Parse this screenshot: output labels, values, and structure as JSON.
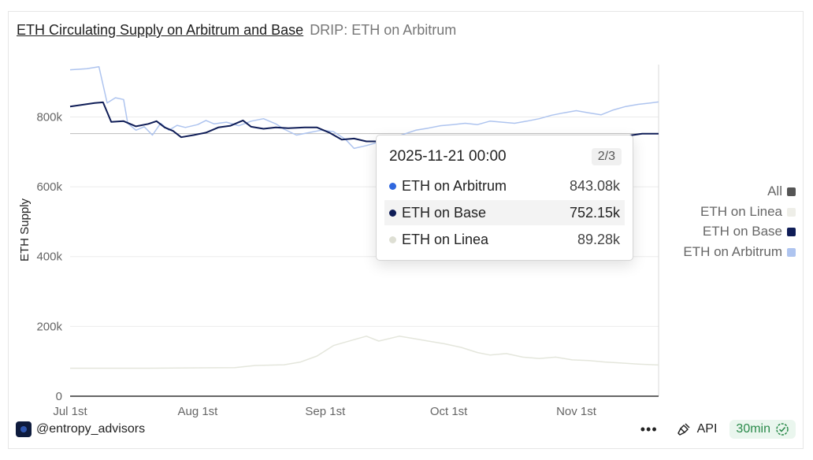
{
  "header": {
    "title": "ETH Circulating Supply on Arbitrum and Base",
    "subtitle": "DRIP: ETH on Arbitrum"
  },
  "chart_data": {
    "type": "line",
    "ylabel": "ETH Supply",
    "xlabel": "",
    "ylim": [
      0,
      950000
    ],
    "y_ticks": [
      0,
      200000,
      400000,
      600000,
      800000
    ],
    "y_tick_labels": [
      "0",
      "200k",
      "400k",
      "600k",
      "800k"
    ],
    "x_ticks": [
      "2025-07-01",
      "2025-08-01",
      "2025-09-01",
      "2025-10-01",
      "2025-11-01"
    ],
    "x_tick_labels": [
      "Jul 1st",
      "Aug 1st",
      "Sep 1st",
      "Oct 1st",
      "Nov 1st"
    ],
    "x_range": [
      "2025-07-01",
      "2025-11-21"
    ],
    "grid": true,
    "legend_position": "right",
    "series": [
      {
        "name": "ETH on Arbitrum",
        "color": "#aec4ef",
        "points": [
          [
            "2025-07-01",
            935000
          ],
          [
            "2025-07-05",
            938000
          ],
          [
            "2025-07-08",
            944000
          ],
          [
            "2025-07-10",
            840000
          ],
          [
            "2025-07-12",
            855000
          ],
          [
            "2025-07-14",
            850000
          ],
          [
            "2025-07-15",
            782000
          ],
          [
            "2025-07-17",
            762000
          ],
          [
            "2025-07-19",
            772000
          ],
          [
            "2025-07-21",
            748000
          ],
          [
            "2025-07-23",
            782000
          ],
          [
            "2025-07-25",
            762000
          ],
          [
            "2025-07-27",
            776000
          ],
          [
            "2025-07-29",
            770000
          ],
          [
            "2025-08-01",
            778000
          ],
          [
            "2025-08-03",
            790000
          ],
          [
            "2025-08-05",
            780000
          ],
          [
            "2025-08-08",
            785000
          ],
          [
            "2025-08-11",
            775000
          ],
          [
            "2025-08-14",
            788000
          ],
          [
            "2025-08-17",
            795000
          ],
          [
            "2025-08-20",
            780000
          ],
          [
            "2025-08-22",
            765000
          ],
          [
            "2025-08-25",
            748000
          ],
          [
            "2025-08-28",
            755000
          ],
          [
            "2025-08-31",
            762000
          ],
          [
            "2025-09-03",
            758000
          ],
          [
            "2025-09-06",
            735000
          ],
          [
            "2025-09-08",
            710000
          ],
          [
            "2025-09-11",
            718000
          ],
          [
            "2025-09-14",
            728000
          ],
          [
            "2025-09-17",
            738000
          ],
          [
            "2025-09-20",
            750000
          ],
          [
            "2025-09-23",
            762000
          ],
          [
            "2025-09-26",
            768000
          ],
          [
            "2025-09-29",
            775000
          ],
          [
            "2025-10-02",
            778000
          ],
          [
            "2025-10-05",
            782000
          ],
          [
            "2025-10-08",
            778000
          ],
          [
            "2025-10-11",
            788000
          ],
          [
            "2025-10-14",
            785000
          ],
          [
            "2025-10-17",
            782000
          ],
          [
            "2025-10-20",
            788000
          ],
          [
            "2025-10-23",
            795000
          ],
          [
            "2025-10-26",
            805000
          ],
          [
            "2025-10-29",
            812000
          ],
          [
            "2025-11-01",
            818000
          ],
          [
            "2025-11-04",
            812000
          ],
          [
            "2025-11-07",
            806000
          ],
          [
            "2025-11-10",
            820000
          ],
          [
            "2025-11-13",
            830000
          ],
          [
            "2025-11-16",
            836000
          ],
          [
            "2025-11-19",
            840000
          ],
          [
            "2025-11-21",
            843080
          ]
        ]
      },
      {
        "name": "ETH on Base",
        "color": "#0f1d57",
        "points": [
          [
            "2025-07-01",
            830000
          ],
          [
            "2025-07-04",
            835000
          ],
          [
            "2025-07-07",
            840000
          ],
          [
            "2025-07-09",
            842000
          ],
          [
            "2025-07-11",
            786000
          ],
          [
            "2025-07-14",
            788000
          ],
          [
            "2025-07-17",
            773000
          ],
          [
            "2025-07-20",
            780000
          ],
          [
            "2025-07-22",
            788000
          ],
          [
            "2025-07-24",
            770000
          ],
          [
            "2025-07-26",
            760000
          ],
          [
            "2025-07-28",
            742000
          ],
          [
            "2025-07-31",
            748000
          ],
          [
            "2025-08-03",
            755000
          ],
          [
            "2025-08-06",
            770000
          ],
          [
            "2025-08-09",
            775000
          ],
          [
            "2025-08-12",
            790000
          ],
          [
            "2025-08-14",
            772000
          ],
          [
            "2025-08-17",
            766000
          ],
          [
            "2025-08-20",
            770000
          ],
          [
            "2025-08-23",
            768000
          ],
          [
            "2025-08-27",
            770000
          ],
          [
            "2025-08-30",
            770000
          ],
          [
            "2025-09-02",
            755000
          ],
          [
            "2025-09-05",
            735000
          ],
          [
            "2025-09-08",
            738000
          ],
          [
            "2025-09-11",
            730000
          ],
          [
            "2025-09-14",
            730000
          ],
          [
            "2025-09-17",
            735000
          ],
          [
            "2025-11-13",
            745000
          ],
          [
            "2025-11-17",
            752000
          ],
          [
            "2025-11-21",
            752150
          ]
        ]
      },
      {
        "name": "ETH on Linea",
        "color": "#e4e6dc",
        "points": [
          [
            "2025-07-01",
            80000
          ],
          [
            "2025-07-20",
            80000
          ],
          [
            "2025-08-10",
            82000
          ],
          [
            "2025-08-15",
            88000
          ],
          [
            "2025-08-22",
            90000
          ],
          [
            "2025-08-26",
            98000
          ],
          [
            "2025-08-30",
            115000
          ],
          [
            "2025-09-03",
            145000
          ],
          [
            "2025-09-08",
            162000
          ],
          [
            "2025-09-11",
            172000
          ],
          [
            "2025-09-14",
            158000
          ],
          [
            "2025-09-19",
            172000
          ],
          [
            "2025-09-22",
            166000
          ],
          [
            "2025-09-26",
            158000
          ],
          [
            "2025-09-30",
            150000
          ],
          [
            "2025-10-04",
            140000
          ],
          [
            "2025-10-08",
            125000
          ],
          [
            "2025-10-11",
            118000
          ],
          [
            "2025-10-15",
            122000
          ],
          [
            "2025-10-19",
            112000
          ],
          [
            "2025-10-23",
            108000
          ],
          [
            "2025-10-27",
            112000
          ],
          [
            "2025-10-31",
            104000
          ],
          [
            "2025-11-04",
            102000
          ],
          [
            "2025-11-08",
            98000
          ],
          [
            "2025-11-12",
            95000
          ],
          [
            "2025-11-16",
            92000
          ],
          [
            "2025-11-21",
            89280
          ]
        ]
      }
    ]
  },
  "tooltip": {
    "date": "2025-11-21 00:00",
    "page": "2/3",
    "rows": [
      {
        "name": "ETH on Arbitrum",
        "value": "843.08k",
        "color": "#2f67de"
      },
      {
        "name": "ETH on Base",
        "value": "752.15k",
        "color": "#0f1d57"
      },
      {
        "name": "ETH on Linea",
        "value": "89.28k",
        "color": "#dedfd4"
      }
    ]
  },
  "legend": {
    "items": [
      {
        "label": "All",
        "color": "#555555"
      },
      {
        "label": "ETH on Linea",
        "color": "#eeeee8"
      },
      {
        "label": "ETH on Base",
        "color": "#0f1d57"
      },
      {
        "label": "ETH on Arbitrum",
        "color": "#aec4ef"
      }
    ]
  },
  "footer": {
    "handle": "@entropy_advisors",
    "more": "•••",
    "api": "API",
    "refresh": "30min"
  }
}
